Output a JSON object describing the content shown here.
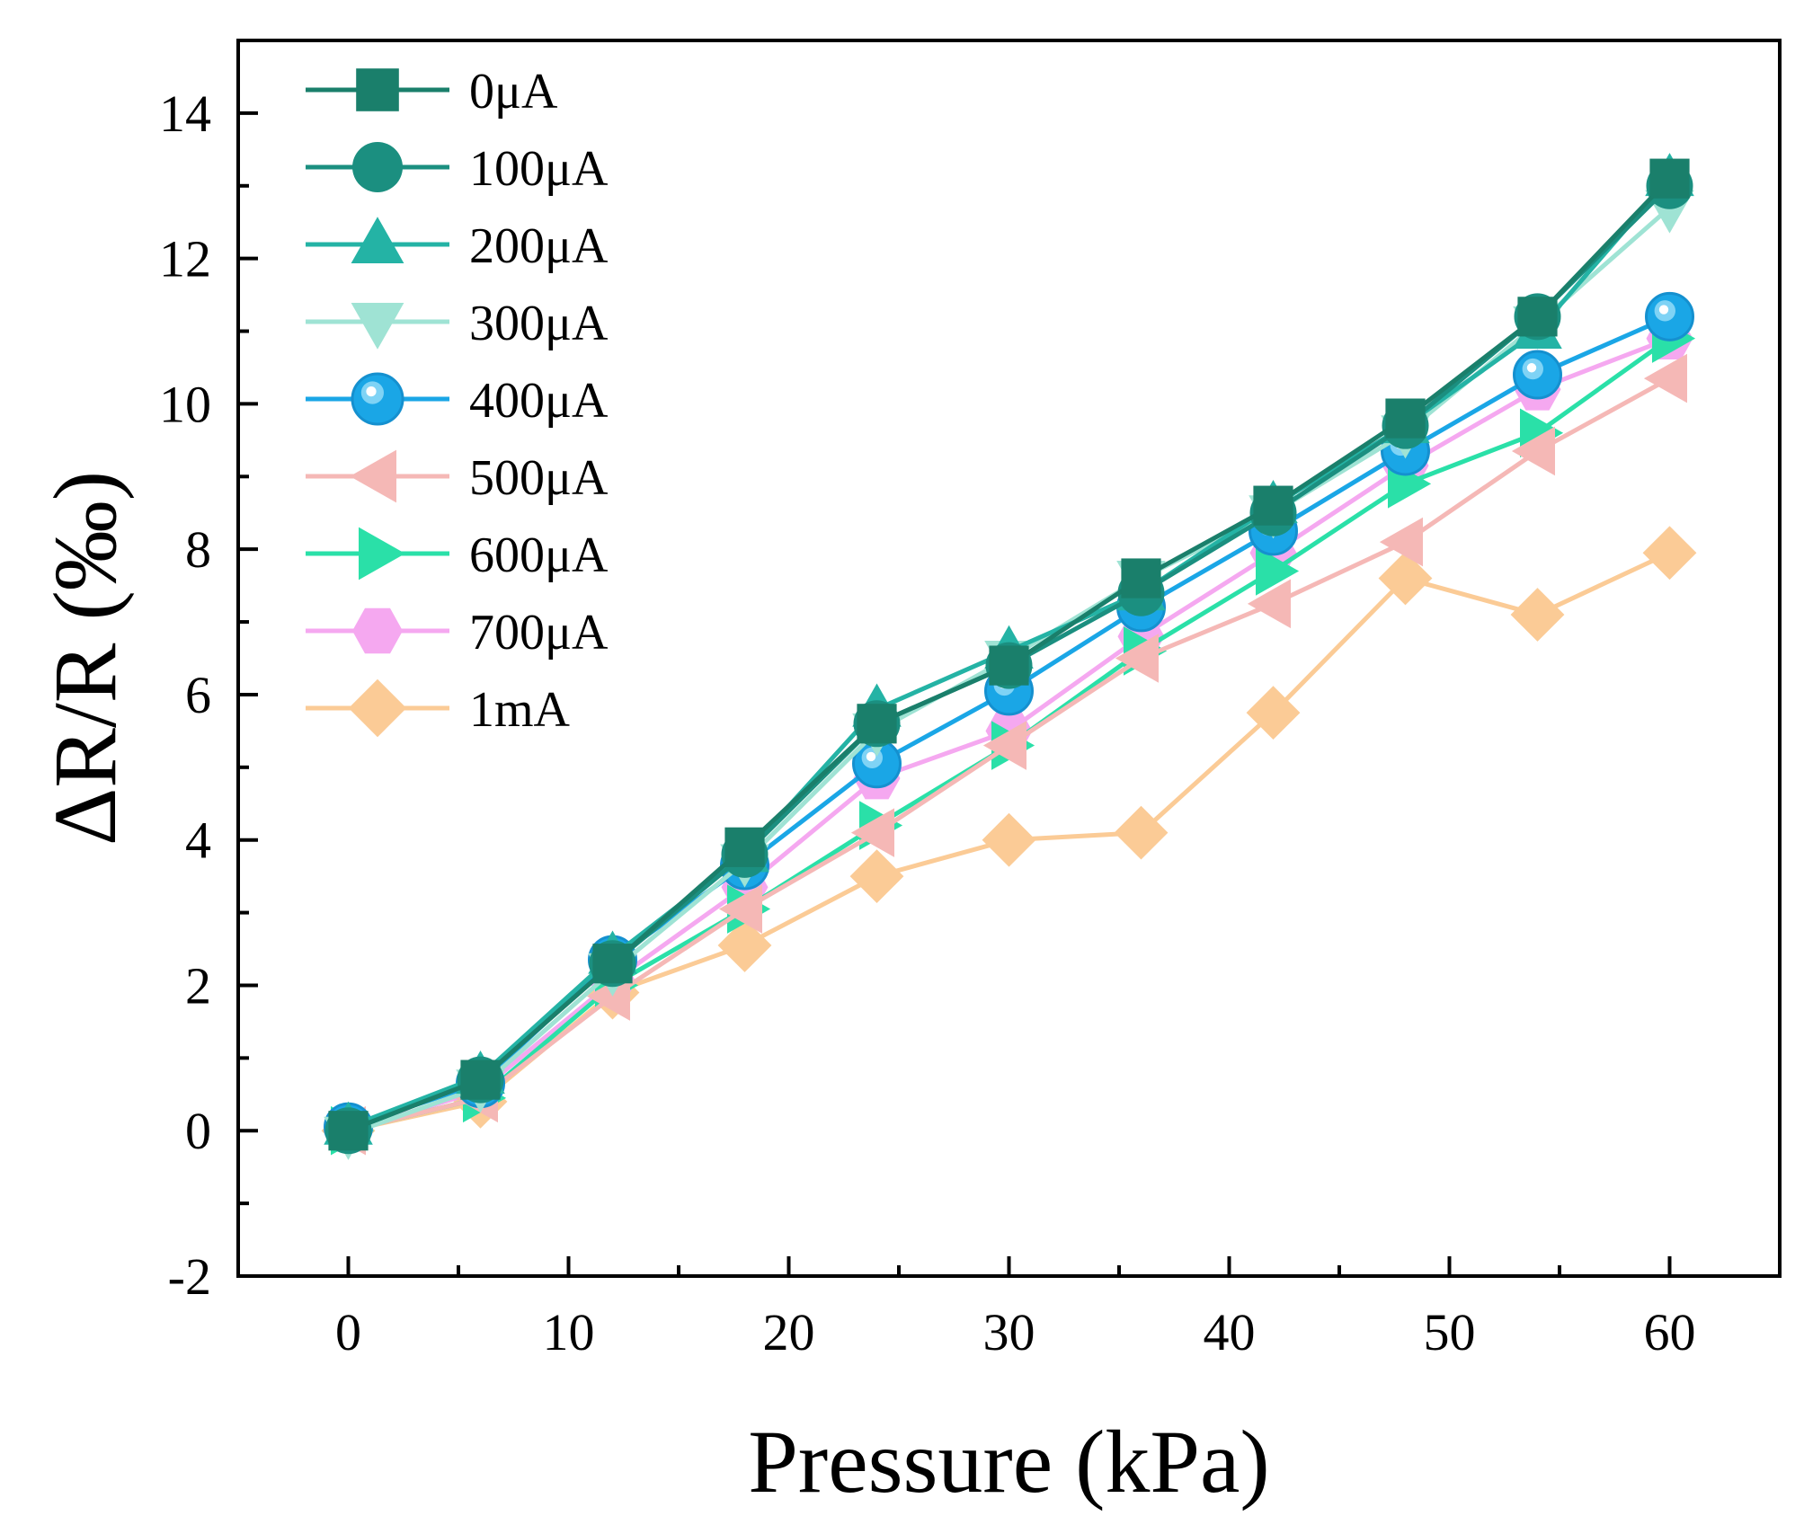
{
  "chart_data": {
    "type": "line",
    "title": "",
    "xlabel": "Pressure (kPa)",
    "ylabel": "ΔR/R (‰)",
    "xlim": [
      -5,
      65
    ],
    "ylim": [
      -2,
      15
    ],
    "x_ticks": [
      0,
      10,
      20,
      30,
      40,
      50,
      60
    ],
    "y_ticks": [
      -2,
      0,
      2,
      4,
      6,
      8,
      10,
      12,
      14
    ],
    "x_tick_labels": [
      "0",
      "10",
      "20",
      "30",
      "40",
      "50",
      "60"
    ],
    "y_tick_labels": [
      "-2",
      "0",
      "2",
      "4",
      "6",
      "8",
      "10",
      "12",
      "14"
    ],
    "legend_position": "top-left",
    "grid": false,
    "x": [
      0,
      6,
      12,
      18,
      24,
      30,
      36,
      42,
      48,
      54,
      60
    ],
    "series": [
      {
        "name": "0μA",
        "marker": "square",
        "color": "#1a7f6b",
        "values": [
          0,
          0.7,
          2.3,
          3.9,
          5.6,
          6.4,
          7.6,
          8.6,
          9.8,
          11.2,
          13.1
        ]
      },
      {
        "name": "100μA",
        "marker": "circle",
        "color": "#1b8f80",
        "values": [
          0,
          0.7,
          2.3,
          3.8,
          5.6,
          6.4,
          7.4,
          8.5,
          9.7,
          11.2,
          13.0
        ]
      },
      {
        "name": "200μA",
        "marker": "triangle-up",
        "color": "#24b3a5",
        "values": [
          0.05,
          0.75,
          2.4,
          3.8,
          5.8,
          6.6,
          7.4,
          8.6,
          9.7,
          11.0,
          13.1
        ]
      },
      {
        "name": "300μA",
        "marker": "triangle-down",
        "color": "#9fe3d4",
        "values": [
          -0.05,
          0.6,
          2.2,
          3.7,
          5.5,
          6.5,
          7.6,
          8.5,
          9.6,
          11.1,
          12.7
        ]
      },
      {
        "name": "400μA",
        "marker": "sphere",
        "color": "#1aa6e6",
        "values": [
          0.05,
          0.65,
          2.35,
          3.65,
          5.05,
          6.05,
          7.2,
          8.25,
          9.35,
          10.4,
          11.2
        ]
      },
      {
        "name": "500μA",
        "marker": "triangle-left",
        "color": "#f5b8b6",
        "values": [
          0,
          0.45,
          1.85,
          3.05,
          4.1,
          5.3,
          6.5,
          7.25,
          8.1,
          9.35,
          10.35
        ]
      },
      {
        "name": "600μA",
        "marker": "triangle-right",
        "color": "#2ae0a8",
        "values": [
          0,
          0.45,
          2.0,
          3.05,
          4.2,
          5.3,
          6.6,
          7.7,
          8.9,
          9.6,
          10.9
        ]
      },
      {
        "name": "700μA",
        "marker": "hexagon",
        "color": "#f5a8f0",
        "values": [
          0,
          0.55,
          2.05,
          3.35,
          4.85,
          5.5,
          6.8,
          7.95,
          9.15,
          10.2,
          10.9
        ]
      },
      {
        "name": "1mA",
        "marker": "diamond",
        "color": "#fbcb96",
        "values": [
          0,
          0.4,
          1.9,
          2.55,
          3.5,
          4.0,
          4.1,
          5.75,
          7.6,
          7.1,
          7.95
        ]
      }
    ]
  }
}
